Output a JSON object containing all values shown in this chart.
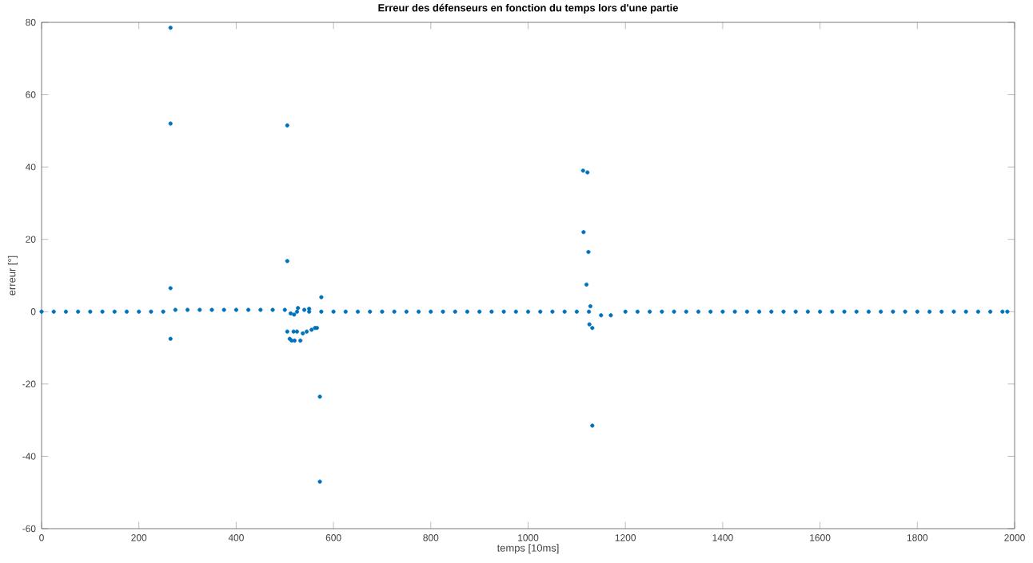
{
  "chart_data": {
    "type": "scatter",
    "title": "Erreur des défenseurs en fonction du temps lors d'une partie",
    "xlabel": "temps [10ms]",
    "ylabel": "erreur [°]",
    "xlim": [
      0,
      2000
    ],
    "ylim": [
      -60,
      80
    ],
    "xticks": [
      0,
      200,
      400,
      600,
      800,
      1000,
      1200,
      1400,
      1600,
      1800,
      2000
    ],
    "yticks": [
      -60,
      -40,
      -20,
      0,
      20,
      40,
      60,
      80
    ],
    "grid": false,
    "marker": "circle",
    "series": [
      {
        "color": "#0072bd",
        "x": [
          0,
          25,
          50,
          75,
          100,
          125,
          150,
          175,
          200,
          225,
          250,
          275,
          300,
          325,
          350,
          375,
          400,
          425,
          450,
          475,
          500,
          525,
          550,
          575,
          600,
          625,
          650,
          675,
          700,
          725,
          750,
          775,
          800,
          825,
          850,
          875,
          900,
          925,
          950,
          975,
          1000,
          1025,
          1050,
          1075,
          1100,
          1125,
          1150,
          1170,
          1200,
          1225,
          1250,
          1275,
          1300,
          1325,
          1350,
          1375,
          1400,
          1425,
          1450,
          1475,
          1500,
          1525,
          1550,
          1575,
          1600,
          1625,
          1650,
          1675,
          1700,
          1725,
          1750,
          1775,
          1800,
          1825,
          1850,
          1875,
          1900,
          1925,
          1950,
          1975,
          1985,
          265,
          265,
          265,
          265,
          505,
          505,
          505,
          510,
          514,
          520,
          518,
          525,
          532,
          537,
          545,
          555,
          562,
          566,
          572,
          572,
          575,
          527,
          540,
          550,
          512,
          519,
          1113,
          1122,
          1114,
          1124,
          1120,
          1128,
          1126,
          1132,
          1132
        ],
        "values": [
          0,
          0,
          0,
          0,
          0,
          0,
          0,
          0,
          0,
          0,
          0,
          0.5,
          0.5,
          0.5,
          0.5,
          0.5,
          0.5,
          0.5,
          0.5,
          0.5,
          0.5,
          0,
          0,
          0,
          0,
          0,
          0,
          0,
          0,
          0,
          0,
          0,
          0,
          0,
          0,
          0,
          0,
          0,
          0,
          0,
          0,
          0,
          0,
          0,
          0,
          0,
          -1,
          -1,
          0,
          0,
          0,
          0,
          0,
          0,
          0,
          0,
          0,
          0,
          0,
          0,
          0,
          0,
          0,
          0,
          0,
          0,
          0,
          0,
          0,
          0,
          0,
          0,
          0,
          0,
          0,
          0,
          0,
          0,
          0,
          0,
          0,
          78.5,
          52,
          6.5,
          -7.5,
          51.5,
          14,
          -5.5,
          -7.5,
          -8,
          -8,
          -5.5,
          -5.5,
          -8,
          -6,
          -5.5,
          -5,
          -4.5,
          -4.5,
          -23.5,
          -47,
          4,
          1,
          0.5,
          0.8,
          -0.5,
          -0.8,
          39,
          38.5,
          22,
          16.5,
          7.5,
          1.5,
          -3.5,
          -4.5,
          -31.5
        ]
      }
    ]
  }
}
